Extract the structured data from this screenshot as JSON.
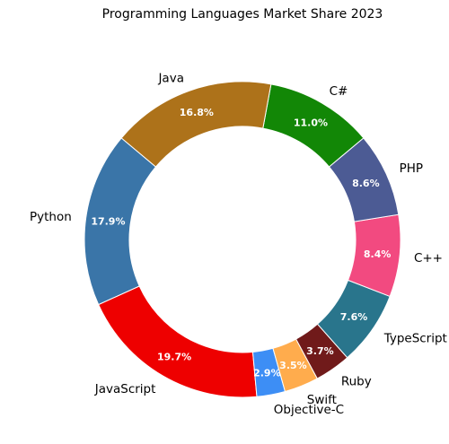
{
  "chart_data": {
    "type": "pie",
    "variant": "donut",
    "title": "Programming Languages Market Share 2023",
    "categories": [
      "Python",
      "JavaScript",
      "Objective-C",
      "Swift",
      "Ruby",
      "TypeScript",
      "C++",
      "PHP",
      "C#",
      "Java"
    ],
    "values": [
      17.9,
      19.7,
      2.9,
      3.5,
      3.7,
      7.6,
      8.4,
      8.6,
      11.0,
      16.8
    ],
    "value_labels": [
      "17.9%",
      "19.7%",
      "2.9%",
      "3.5%",
      "3.7%",
      "7.6%",
      "8.4%",
      "8.6%",
      "11.0%",
      "16.8%"
    ],
    "colors": [
      "#3a75a8",
      "#ee0000",
      "#3d8ef5",
      "#ffac4d",
      "#701a1a",
      "#29758c",
      "#f24a80",
      "#4c5b94",
      "#128706",
      "#ad721a"
    ],
    "legend": "none",
    "slice_order": "counter-clockwise"
  }
}
